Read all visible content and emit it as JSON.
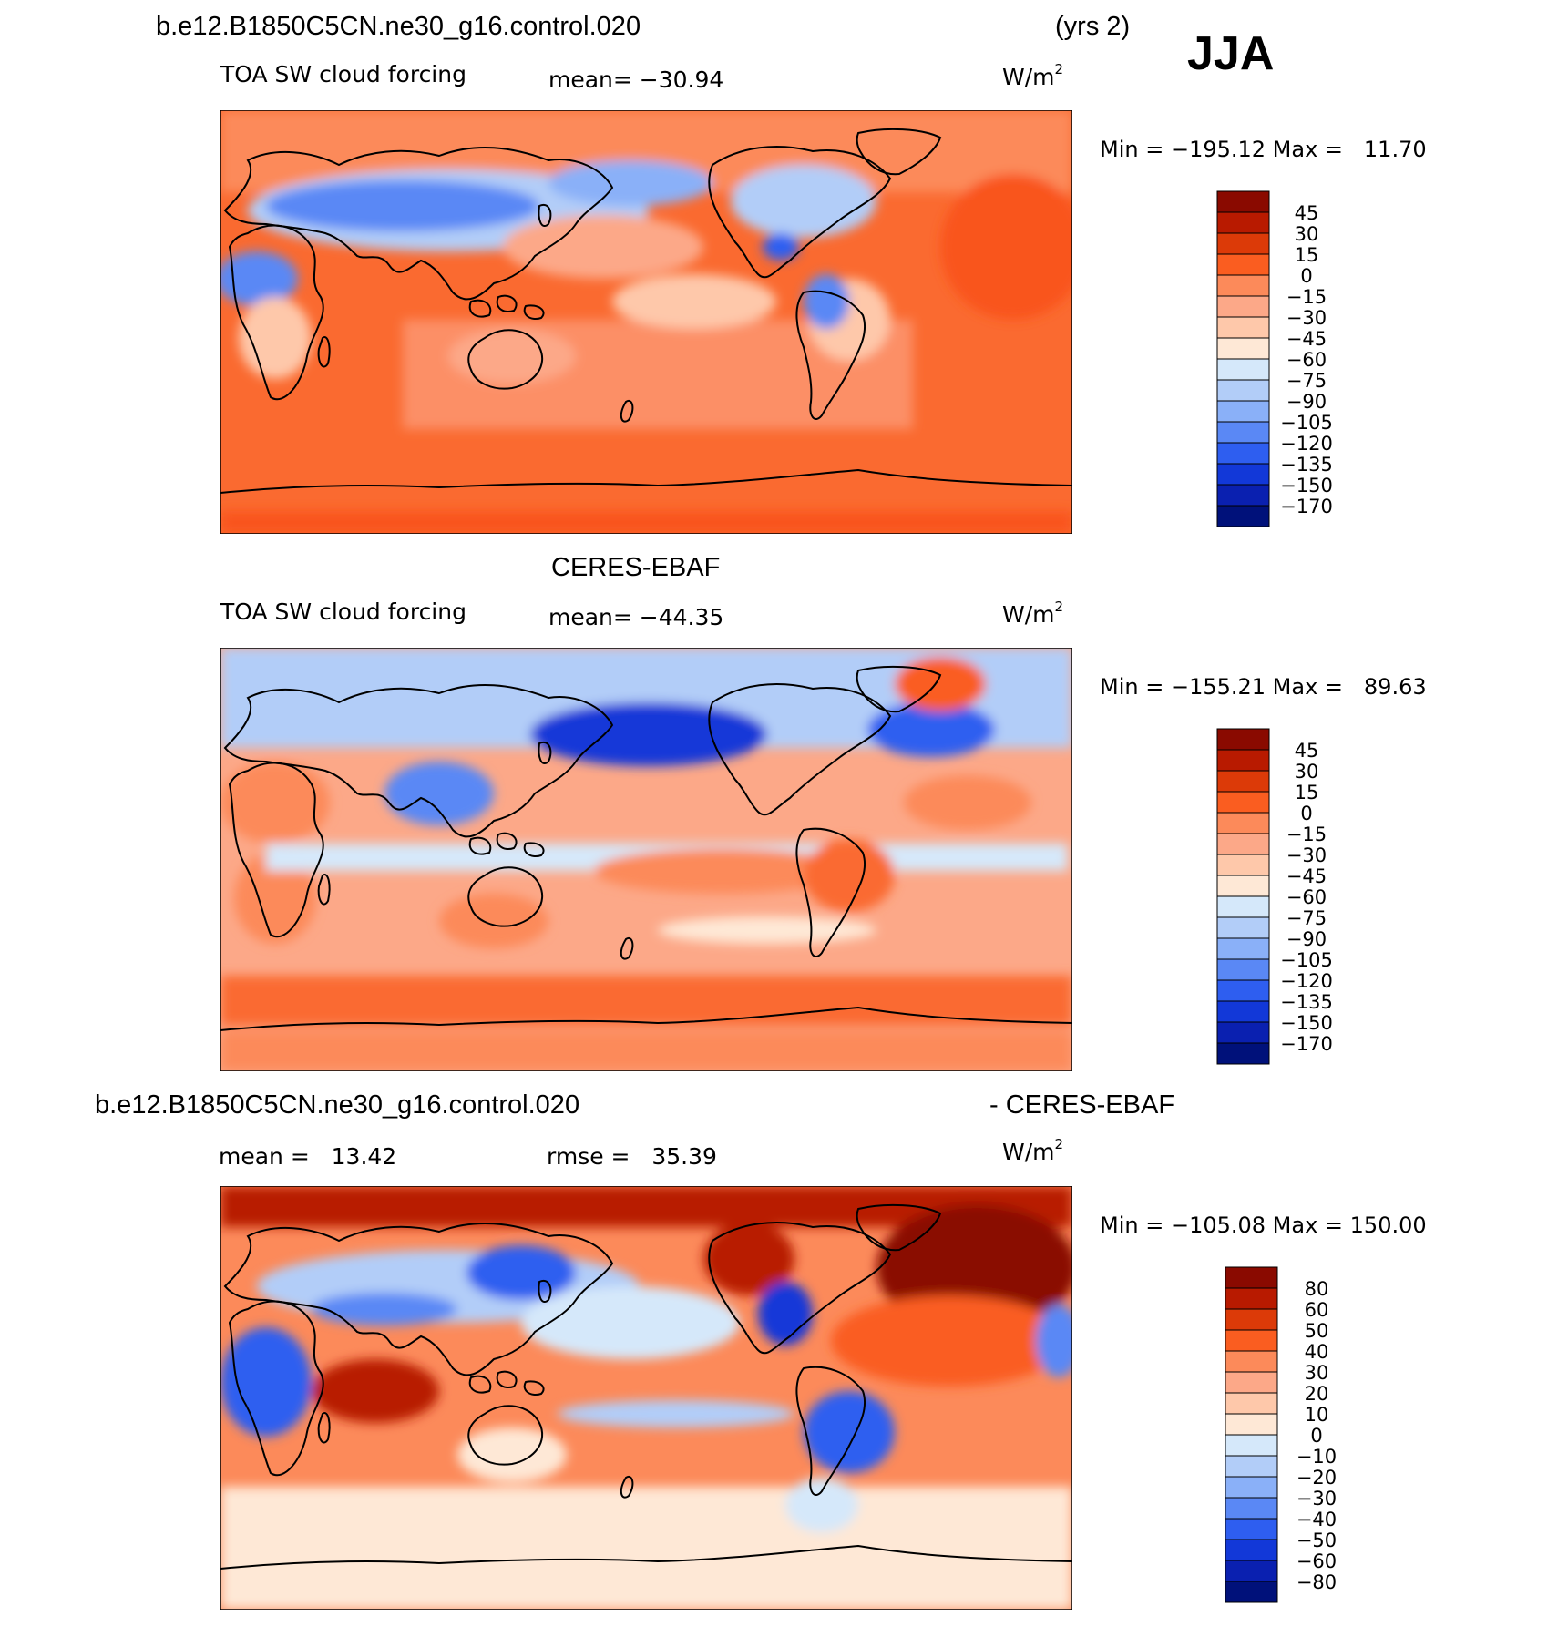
{
  "header": {
    "case_title": "b.e12.B1850C5CN.ne30_g16.control.020",
    "years": "(yrs 2)",
    "season": "JJA"
  },
  "panels": [
    {
      "id": "model",
      "title": "",
      "variable": "TOA SW cloud forcing",
      "stat": "mean= −30.94",
      "stat2": "",
      "units_base": "W/m",
      "units_exp": "2",
      "minmax": "Min = −195.12 Max =   11.70",
      "colorbar": {
        "labels": [
          "45",
          "30",
          "15",
          "0",
          "−15",
          "−30",
          "−45",
          "−60",
          "−75",
          "−90",
          "−105",
          "−120",
          "−135",
          "−150",
          "−170"
        ],
        "colors": [
          "#8a0a00",
          "#b81a00",
          "#dc3a08",
          "#fa5d20",
          "#fc8a5a",
          "#fca888",
          "#fec8aa",
          "#fee8d6",
          "#d5e8fa",
          "#b2cdf8",
          "#8ab0f8",
          "#5a88f5",
          "#2e5ef0",
          "#1238d8",
          "#0a20b0",
          "#00117a"
        ]
      },
      "map_color_order": "land_bg"
    },
    {
      "id": "obs",
      "title": "CERES-EBAF",
      "variable": "TOA SW cloud forcing",
      "stat": "mean= −44.35",
      "stat2": "",
      "units_base": "W/m",
      "units_exp": "2",
      "minmax": "Min = −155.21 Max =   89.63",
      "colorbar": {
        "labels": [
          "45",
          "30",
          "15",
          "0",
          "−15",
          "−30",
          "−45",
          "−60",
          "−75",
          "−90",
          "−105",
          "−120",
          "−135",
          "−150",
          "−170"
        ],
        "colors": [
          "#8a0a00",
          "#b81a00",
          "#dc3a08",
          "#fa5d20",
          "#fc8a5a",
          "#fca888",
          "#fec8aa",
          "#fee8d6",
          "#d5e8fa",
          "#b2cdf8",
          "#8ab0f8",
          "#5a88f5",
          "#2e5ef0",
          "#1238d8",
          "#0a20b0",
          "#00117a"
        ]
      }
    },
    {
      "id": "diff",
      "title_left": "b.e12.B1850C5CN.ne30_g16.control.020",
      "title_right": "- CERES-EBAF",
      "variable": "",
      "stat": "mean =   13.42",
      "stat2": "rmse =   35.39",
      "units_base": "W/m",
      "units_exp": "2",
      "minmax": "Min = −105.08 Max = 150.00",
      "colorbar": {
        "labels": [
          "80",
          "60",
          "50",
          "40",
          "30",
          "20",
          "10",
          "0",
          "−10",
          "−20",
          "−30",
          "−40",
          "−50",
          "−60",
          "−80"
        ],
        "colors": [
          "#8a0a00",
          "#b81a00",
          "#dc3a08",
          "#fa5d20",
          "#fc8a5a",
          "#fca888",
          "#fec8aa",
          "#fee8d6",
          "#d5e8fa",
          "#b2cdf8",
          "#8ab0f8",
          "#5a88f5",
          "#2e5ef0",
          "#1238d8",
          "#0a20b0",
          "#00117a"
        ]
      }
    }
  ]
}
